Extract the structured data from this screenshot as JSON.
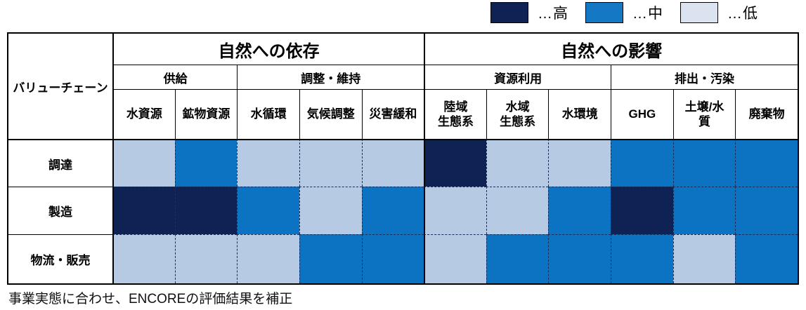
{
  "legend": {
    "items": [
      {
        "label": "…高",
        "color": "#0e2254"
      },
      {
        "label": "…中",
        "color": "#1478c5"
      },
      {
        "label": "…低",
        "color": "#dbe3f1"
      }
    ]
  },
  "table": {
    "corner_label": "バリューチェーン",
    "group_headers": [
      {
        "label": "自然への依存"
      },
      {
        "label": "自然への影響"
      }
    ],
    "subgroup_headers": [
      {
        "label": "供給"
      },
      {
        "label": "調整・維持"
      },
      {
        "label": "資源利用"
      },
      {
        "label": "排出・汚染"
      }
    ],
    "column_labels": [
      "水資源",
      "鉱物資源",
      "水循環",
      "気候調整",
      "災害緩和",
      "陸域\n生態系",
      "水域\n生態系",
      "水環境",
      "GHG",
      "土壌/水\n質",
      "廃棄物"
    ],
    "row_labels": [
      "調達",
      "製造",
      "物流・販売"
    ]
  },
  "note": "事業実態に合わせ、ENCOREの評価結果を補正",
  "level_colors": {
    "高": "#0e2254",
    "中": "#0c72c2",
    "低": "#b6cae4"
  },
  "chart_data": {
    "type": "heatmap",
    "title": "",
    "x_categories": [
      "水資源",
      "鉱物資源",
      "水循環",
      "気候調整",
      "災害緩和",
      "陸域生態系",
      "水域生態系",
      "水環境",
      "GHG",
      "土壌/水質",
      "廃棄物"
    ],
    "x_groups": [
      {
        "label": "自然への依存",
        "subgroups": [
          {
            "label": "供給",
            "columns": [
              "水資源",
              "鉱物資源"
            ]
          },
          {
            "label": "調整・維持",
            "columns": [
              "水循環",
              "気候調整",
              "災害緩和"
            ]
          }
        ]
      },
      {
        "label": "自然への影響",
        "subgroups": [
          {
            "label": "資源利用",
            "columns": [
              "陸域生態系",
              "水域生態系",
              "水環境"
            ]
          },
          {
            "label": "排出・汚染",
            "columns": [
              "GHG",
              "土壌/水質",
              "廃棄物"
            ]
          }
        ]
      }
    ],
    "y_categories": [
      "調達",
      "製造",
      "物流・販売"
    ],
    "values": [
      [
        "低",
        "中",
        "低",
        "低",
        "低",
        "高",
        "低",
        "低",
        "中",
        "中",
        "中"
      ],
      [
        "高",
        "高",
        "中",
        "低",
        "中",
        "低",
        "低",
        "中",
        "高",
        "中",
        "中"
      ],
      [
        "低",
        "低",
        "低",
        "中",
        "中",
        "低",
        "中",
        "中",
        "中",
        "低",
        "中"
      ]
    ],
    "scale": {
      "高": "high",
      "中": "medium",
      "低": "low"
    },
    "legend_position": "top-right",
    "footnote": "事業実態に合わせ、ENCOREの評価結果を補正"
  }
}
